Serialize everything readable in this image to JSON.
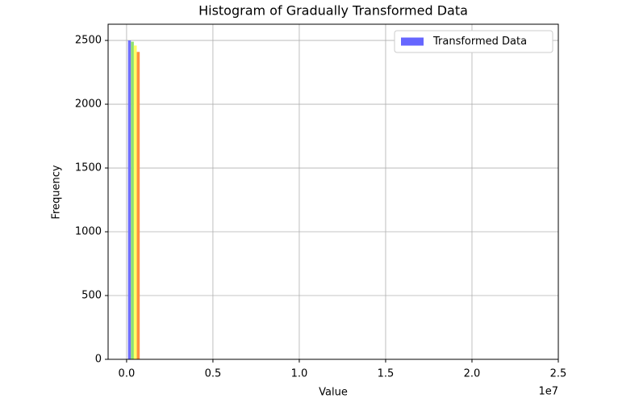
{
  "chart_data": {
    "type": "histogram",
    "title": "Histogram of Gradually Transformed Data",
    "x_label": "Value",
    "y_label": "Frequency",
    "x_offset_label": "1e7",
    "bins": [
      80000,
      250000,
      420000,
      590000,
      760000
    ],
    "series": [
      {
        "name": "Transformed Data",
        "color": "#6666ff",
        "values": [
          2500,
          2490,
          2460,
          2410
        ]
      }
    ],
    "bar_colors": [
      "#7070ff",
      "#90e070",
      "#ffff66",
      "#ff9040"
    ],
    "xlim": [
      -1070000,
      25000000
    ],
    "xticks": [
      {
        "value": 0,
        "label": "0.0"
      },
      {
        "value": 5000000,
        "label": "0.5"
      },
      {
        "value": 10000000,
        "label": "1.0"
      },
      {
        "value": 15000000,
        "label": "1.5"
      },
      {
        "value": 20000000,
        "label": "2.0"
      },
      {
        "value": 25000000,
        "label": "2.5"
      }
    ],
    "ylim": [
      0,
      2627
    ],
    "yticks": [
      0,
      500,
      1000,
      1500,
      2000,
      2500
    ],
    "grid": true,
    "legend": "upper right"
  }
}
